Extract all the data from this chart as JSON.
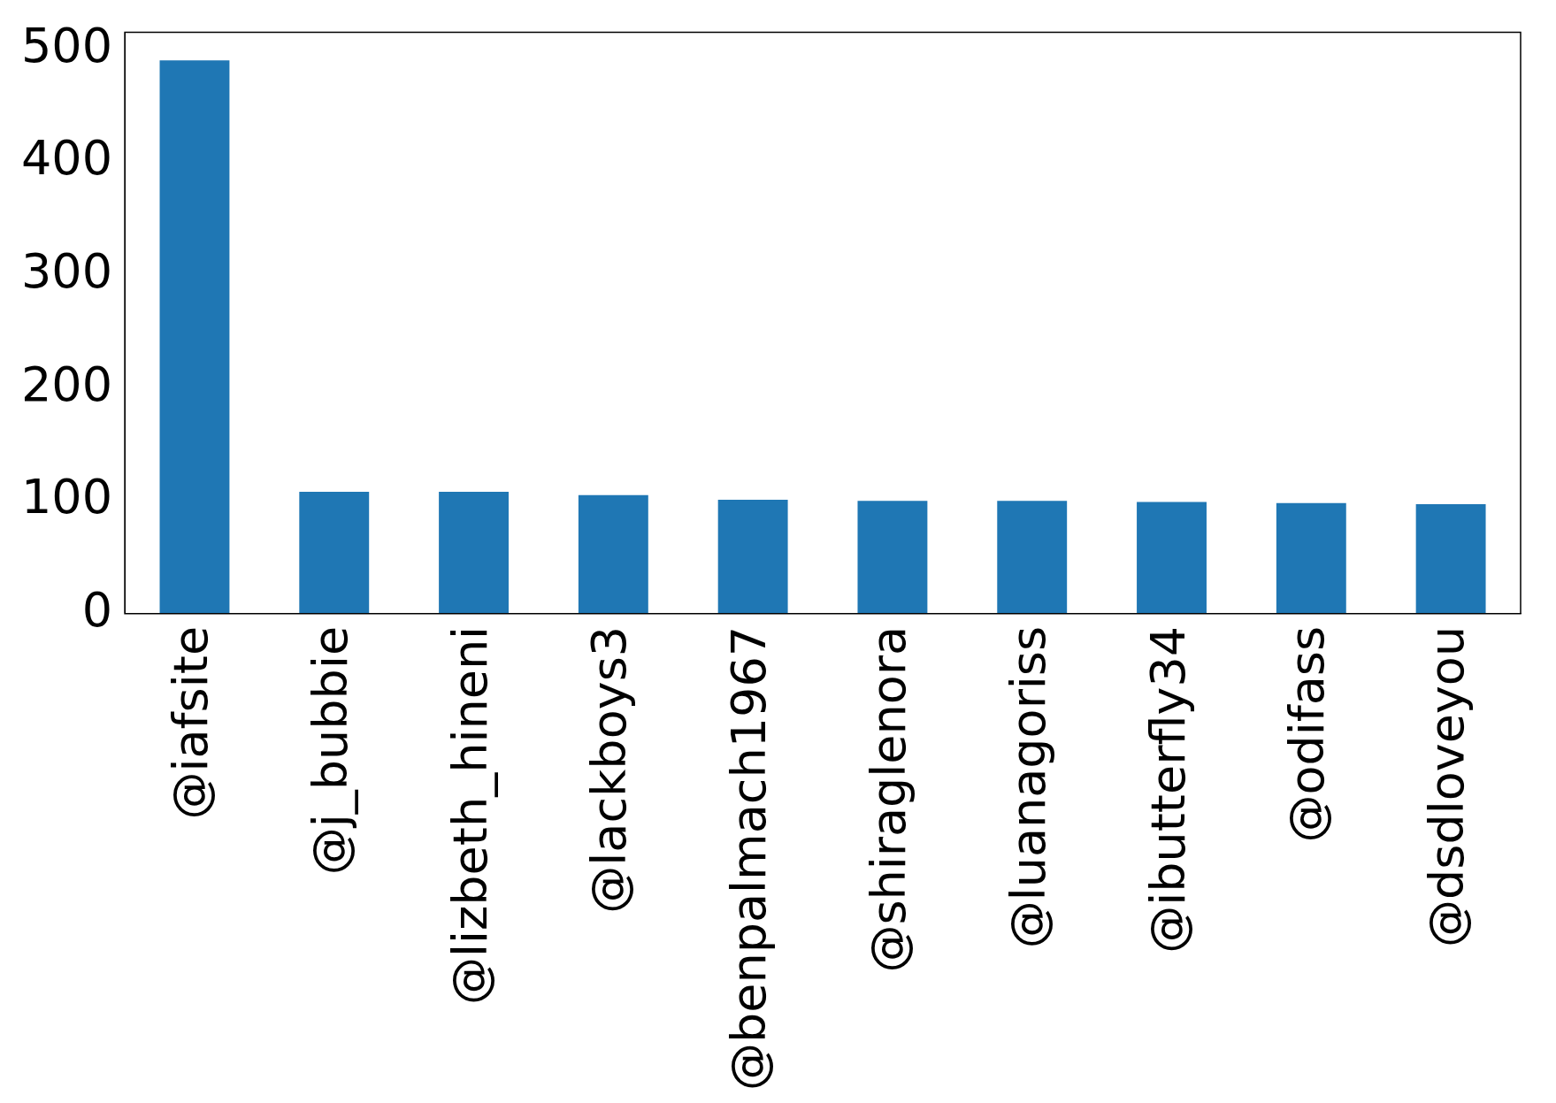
{
  "chart_data": {
    "type": "bar",
    "categories": [
      "@iafsite",
      "@j_bubbie",
      "@lizbeth_hineni",
      "@lackboys3",
      "@benpalmach1967",
      "@shiraglenora",
      "@luanagoriss",
      "@ibutterfly34",
      "@odifass",
      "@dsdloveyou"
    ],
    "values": [
      490,
      108,
      108,
      105,
      101,
      100,
      100,
      99,
      98,
      97
    ],
    "color": "#1f77b4",
    "ylim": [
      0,
      515
    ],
    "yticks": [
      0,
      100,
      200,
      300,
      400,
      500
    ],
    "grid": false,
    "legend": false
  }
}
